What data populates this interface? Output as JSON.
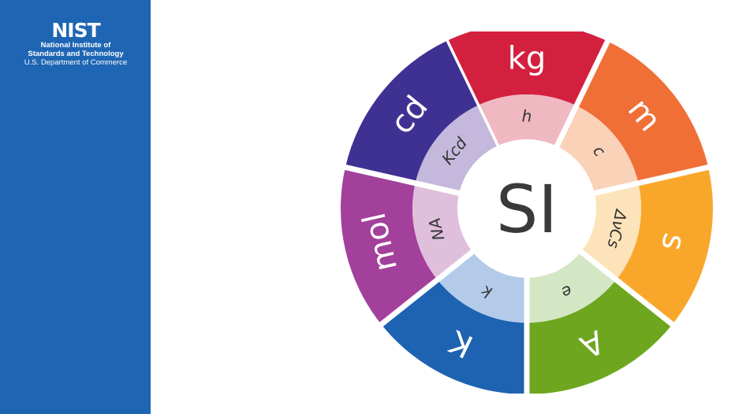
{
  "branding": {
    "mark": "NIST",
    "line1": "National Institute of",
    "line2": "Standards and Technology",
    "line3": "U.S. Department of Commerce",
    "color": "#1e66b3"
  },
  "center": {
    "label": "SI"
  },
  "segments": [
    {
      "unit": "kg",
      "constant": "h",
      "outer_color": "#d4203f",
      "inner_color": "#f0b9c2"
    },
    {
      "unit": "m",
      "constant": "c",
      "outer_color": "#f06f37",
      "inner_color": "#fad2b8"
    },
    {
      "unit": "s",
      "constant": "ΔνCs",
      "outer_color": "#f9a72b",
      "inner_color": "#fde3b9"
    },
    {
      "unit": "A",
      "constant": "e",
      "outer_color": "#6ea71f",
      "inner_color": "#d4e7c4"
    },
    {
      "unit": "K",
      "constant": "k",
      "outer_color": "#1e63b1",
      "inner_color": "#b3cbe9"
    },
    {
      "unit": "mol",
      "constant": "NA",
      "outer_color": "#a3409b",
      "inner_color": "#dfbfdc"
    },
    {
      "unit": "cd",
      "constant": "Kcd",
      "outer_color": "#3f3192",
      "inner_color": "#c4b8dc"
    }
  ]
}
